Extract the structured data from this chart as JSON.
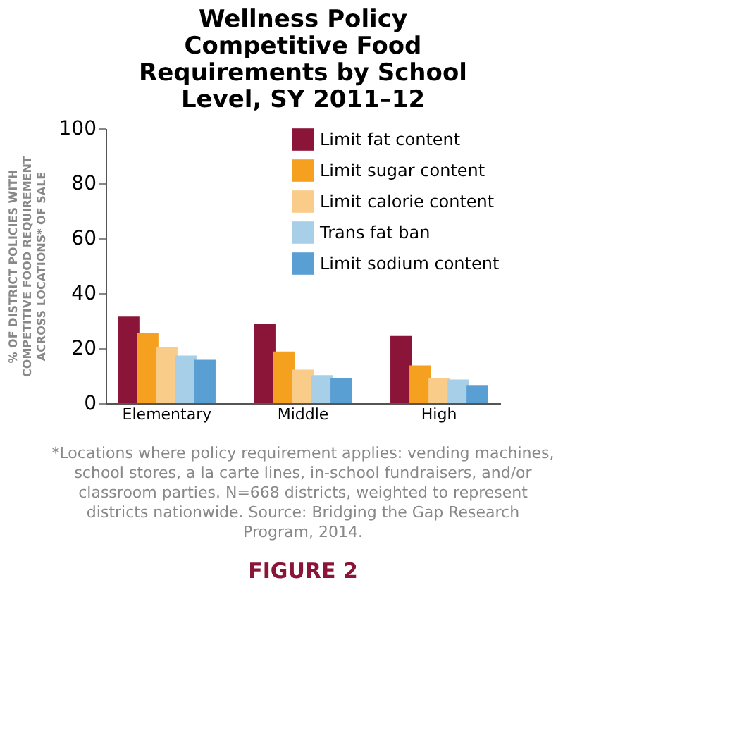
{
  "chart_data": {
    "type": "bar",
    "title": "Wellness Policy Competitive Food Requirements by School Level, SY 2011–12",
    "ylabel": "% OF DISTRICT POLICIES WITH COMPETITIVE FOOD REQUIREMENT ACROSS LOCATIONS* OF SALE",
    "categories": [
      "Elementary",
      "Middle",
      "High"
    ],
    "series": [
      {
        "name": "Limit fat content",
        "color": "#8b1538",
        "values": [
          31.5,
          29,
          24.4
        ]
      },
      {
        "name": "Limit sugar content",
        "color": "#f5a01f",
        "values": [
          25.4,
          18.8,
          13.7
        ]
      },
      {
        "name": "Limit calorie content",
        "color": "#f9cc8a",
        "values": [
          20.3,
          12.2,
          9.2
        ]
      },
      {
        "name": "Trans fat ban",
        "color": "#a8cfe8",
        "values": [
          17.3,
          10.2,
          8.6
        ]
      },
      {
        "name": "Limit sodium content",
        "color": "#5a9fd4",
        "values": [
          15.8,
          9.2,
          6.6
        ]
      }
    ],
    "ylim": [
      0,
      100
    ],
    "yticks": [
      0,
      20,
      40,
      60,
      80,
      100
    ],
    "grid": false,
    "legend": "top right",
    "annotations": [
      "*Locations where policy requirement applies: vending machines, school stores, a la carte lines, in-school fundraisers, and/or classroom parties. N=668 districts, weighted to represent districts nationwide. Source: Bridging the Gap Research Program, 2014.",
      "FIGURE 2"
    ]
  }
}
